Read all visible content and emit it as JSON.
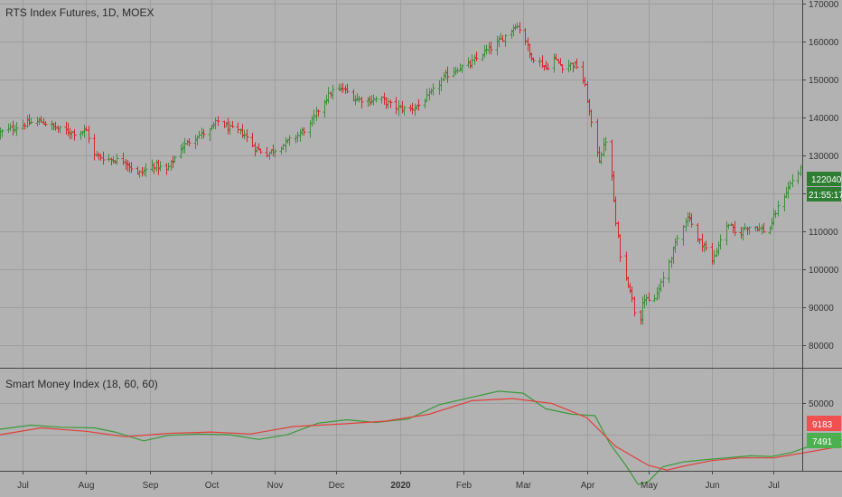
{
  "chart_data": [
    {
      "type": "ohlc",
      "title": "RTS Index Futures, 1D, MOEX",
      "ylim": [
        74000,
        171000
      ],
      "y_ticks": [
        "80000",
        "90000",
        "100000",
        "110000",
        "120000",
        "130000",
        "140000",
        "150000",
        "160000",
        "170000"
      ],
      "y_tick_values": [
        80000,
        90000,
        100000,
        110000,
        120000,
        130000,
        140000,
        150000,
        160000,
        170000
      ],
      "x_range": [
        "2019-06-20",
        "2020-07-15"
      ],
      "x_ticks": [
        {
          "date": "2019-07-01",
          "label": "Jul"
        },
        {
          "date": "2019-08-01",
          "label": "Aug"
        },
        {
          "date": "2019-09-01",
          "label": "Sep"
        },
        {
          "date": "2019-10-01",
          "label": "Oct"
        },
        {
          "date": "2019-11-01",
          "label": "Nov"
        },
        {
          "date": "2019-12-01",
          "label": "Dec"
        },
        {
          "date": "2020-01-01",
          "label": "2020",
          "bold": true
        },
        {
          "date": "2020-02-01",
          "label": "Feb"
        },
        {
          "date": "2020-03-01",
          "label": "Mar"
        },
        {
          "date": "2020-04-01",
          "label": "Apr"
        },
        {
          "date": "2020-05-01",
          "label": "May"
        },
        {
          "date": "2020-06-01",
          "label": "Jun"
        },
        {
          "date": "2020-07-01",
          "label": "Jul"
        }
      ],
      "close_anchors": [
        [
          "2019-06-20",
          136000
        ],
        [
          "2019-06-25",
          137000
        ],
        [
          "2019-07-03",
          138500
        ],
        [
          "2019-07-10",
          139000
        ],
        [
          "2019-07-18",
          137000
        ],
        [
          "2019-07-26",
          136000
        ],
        [
          "2019-08-01",
          136500
        ],
        [
          "2019-08-05",
          130000
        ],
        [
          "2019-08-12",
          129000
        ],
        [
          "2019-08-20",
          128500
        ],
        [
          "2019-08-26",
          125000
        ],
        [
          "2019-09-03",
          127500
        ],
        [
          "2019-09-09",
          126000
        ],
        [
          "2019-09-16",
          132000
        ],
        [
          "2019-09-23",
          135000
        ],
        [
          "2019-09-30",
          136500
        ],
        [
          "2019-10-04",
          139000
        ],
        [
          "2019-10-10",
          137000
        ],
        [
          "2019-10-16",
          136000
        ],
        [
          "2019-10-22",
          132000
        ],
        [
          "2019-10-28",
          130500
        ],
        [
          "2019-11-04",
          132500
        ],
        [
          "2019-11-11",
          135000
        ],
        [
          "2019-11-18",
          138000
        ],
        [
          "2019-11-24",
          144000
        ],
        [
          "2019-11-29",
          147000
        ],
        [
          "2019-12-04",
          147500
        ],
        [
          "2019-12-10",
          145000
        ],
        [
          "2019-12-16",
          144500
        ],
        [
          "2019-12-22",
          145000
        ],
        [
          "2019-12-28",
          143000
        ],
        [
          "2020-01-05",
          142000
        ],
        [
          "2020-01-11",
          143500
        ],
        [
          "2020-01-17",
          147000
        ],
        [
          "2020-01-23",
          151000
        ],
        [
          "2020-01-29",
          153000
        ],
        [
          "2020-02-04",
          154000
        ],
        [
          "2020-02-10",
          157000
        ],
        [
          "2020-02-16",
          159000
        ],
        [
          "2020-02-22",
          162000
        ],
        [
          "2020-02-26",
          164500
        ],
        [
          "2020-03-01",
          162500
        ],
        [
          "2020-03-04",
          156500
        ],
        [
          "2020-03-08",
          155000
        ],
        [
          "2020-03-12",
          153000
        ],
        [
          "2020-03-16",
          155500
        ],
        [
          "2020-03-20",
          153500
        ],
        [
          "2020-03-24",
          154000
        ],
        [
          "2020-03-28",
          153500
        ],
        [
          "2020-03-31",
          148000
        ],
        [
          "2020-04-03",
          138000
        ],
        [
          "2020-04-07",
          129000
        ],
        [
          "2020-04-10",
          134000
        ],
        [
          "2020-04-13",
          124000
        ],
        [
          "2020-04-15",
          112000
        ],
        [
          "2020-04-18",
          100000
        ],
        [
          "2020-04-22",
          95000
        ],
        [
          "2020-04-26",
          83000
        ],
        [
          "2020-04-28",
          92000
        ],
        [
          "2020-05-03",
          91000
        ],
        [
          "2020-05-07",
          96000
        ],
        [
          "2020-05-11",
          102000
        ],
        [
          "2020-05-15",
          108000
        ],
        [
          "2020-05-19",
          113000
        ],
        [
          "2020-05-21",
          114000
        ],
        [
          "2020-05-24",
          108000
        ],
        [
          "2020-05-28",
          106500
        ],
        [
          "2020-06-01",
          102000
        ],
        [
          "2020-06-05",
          108000
        ],
        [
          "2020-06-09",
          112000
        ],
        [
          "2020-06-13",
          108500
        ],
        [
          "2020-06-17",
          111000
        ],
        [
          "2020-06-21",
          111500
        ],
        [
          "2020-06-25",
          110500
        ],
        [
          "2020-06-28",
          109500
        ],
        [
          "2020-07-02",
          115000
        ],
        [
          "2020-07-06",
          119500
        ],
        [
          "2020-07-10",
          123500
        ],
        [
          "2020-07-14",
          126000
        ]
      ],
      "last_price_label": "122040",
      "timer_label": "21:55:17",
      "colors": {
        "up": "#3f8f3a",
        "down": "#d9262e",
        "badge": "#2e7d32",
        "grid": "#9e9e9e",
        "background": "#b2b2b2"
      }
    },
    {
      "type": "line",
      "title": "Smart Money Index (18, 60, 60)",
      "ylim": [
        40000,
        55000
      ],
      "y_ticks": [
        "50000"
      ],
      "y_tick_values": [
        50000
      ],
      "series": [
        {
          "name": "",
          "color": "#3a9a3a",
          "points": [
            [
              "2019-06-20",
              46100
            ],
            [
              "2019-07-05",
              46700
            ],
            [
              "2019-07-20",
              46400
            ],
            [
              "2019-08-05",
              46300
            ],
            [
              "2019-08-15",
              45700
            ],
            [
              "2019-08-29",
              44400
            ],
            [
              "2019-09-10",
              45200
            ],
            [
              "2019-09-25",
              45400
            ],
            [
              "2019-10-10",
              45300
            ],
            [
              "2019-10-24",
              44600
            ],
            [
              "2019-11-07",
              45300
            ],
            [
              "2019-11-22",
              47000
            ],
            [
              "2019-12-06",
              47500
            ],
            [
              "2019-12-20",
              47100
            ],
            [
              "2020-01-05",
              47600
            ],
            [
              "2020-01-20",
              49700
            ],
            [
              "2020-02-05",
              50800
            ],
            [
              "2020-02-18",
              51700
            ],
            [
              "2020-03-01",
              51400
            ],
            [
              "2020-03-12",
              49100
            ],
            [
              "2020-03-25",
              48300
            ],
            [
              "2020-04-05",
              48100
            ],
            [
              "2020-04-12",
              44100
            ],
            [
              "2020-04-20",
              40800
            ],
            [
              "2020-04-26",
              38000
            ],
            [
              "2020-05-01",
              38400
            ],
            [
              "2020-05-08",
              40600
            ],
            [
              "2020-05-18",
              41300
            ],
            [
              "2020-05-28",
              41600
            ],
            [
              "2020-06-08",
              41900
            ],
            [
              "2020-06-20",
              42200
            ],
            [
              "2020-06-30",
              42100
            ],
            [
              "2020-07-10",
              42700
            ],
            [
              "2020-07-22",
              44000
            ],
            [
              "2020-08-05",
              44600
            ],
            [
              "2020-08-13",
              43600
            ],
            [
              "2020-08-21",
              43900
            ]
          ]
        },
        {
          "name": "",
          "color": "#e0403a",
          "points": [
            [
              "2019-06-20",
              45300
            ],
            [
              "2019-07-10",
              46300
            ],
            [
              "2019-08-01",
              45800
            ],
            [
              "2019-08-20",
              45000
            ],
            [
              "2019-09-10",
              45500
            ],
            [
              "2019-10-01",
              45700
            ],
            [
              "2019-10-20",
              45400
            ],
            [
              "2019-11-10",
              46500
            ],
            [
              "2019-12-05",
              46900
            ],
            [
              "2019-12-25",
              47300
            ],
            [
              "2020-01-15",
              48300
            ],
            [
              "2020-02-05",
              50300
            ],
            [
              "2020-02-25",
              50600
            ],
            [
              "2020-03-15",
              49900
            ],
            [
              "2020-04-01",
              47800
            ],
            [
              "2020-04-15",
              43600
            ],
            [
              "2020-05-01",
              40800
            ],
            [
              "2020-05-10",
              40100
            ],
            [
              "2020-05-20",
              40800
            ],
            [
              "2020-06-01",
              41500
            ],
            [
              "2020-06-15",
              41900
            ],
            [
              "2020-07-01",
              41900
            ],
            [
              "2020-07-15",
              42600
            ],
            [
              "2020-08-01",
              43500
            ],
            [
              "2020-08-21",
              44100
            ]
          ]
        }
      ],
      "last_values": [
        "9183",
        "7491"
      ]
    }
  ]
}
